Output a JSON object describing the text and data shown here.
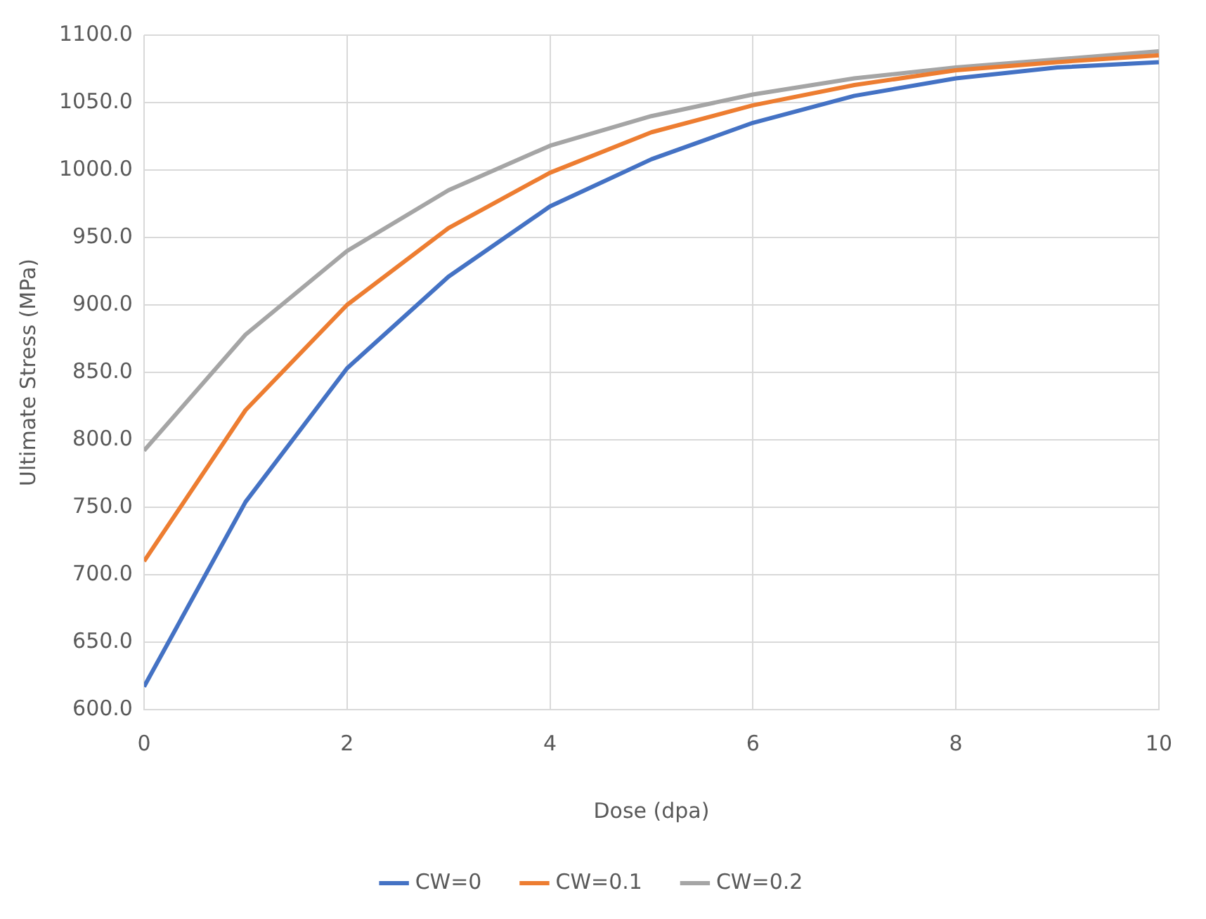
{
  "chart_data": {
    "type": "line",
    "xlabel": "Dose (dpa)",
    "ylabel": "Ultimate Stress (MPa)",
    "x": [
      0,
      1,
      2,
      3,
      4,
      5,
      6,
      7,
      8,
      9,
      10
    ],
    "series": [
      {
        "name": "CW=0",
        "color": "#4472c4",
        "values": [
          617,
          754,
          853,
          921,
          973,
          1008,
          1035,
          1055,
          1068,
          1076,
          1080
        ]
      },
      {
        "name": "CW=0.1",
        "color": "#ed7d31",
        "values": [
          710,
          822,
          900,
          957,
          998,
          1028,
          1048,
          1063,
          1074,
          1080,
          1085
        ]
      },
      {
        "name": "CW=0.2",
        "color": "#a5a5a5",
        "values": [
          792,
          878,
          940,
          985,
          1018,
          1040,
          1056,
          1068,
          1076,
          1082,
          1088
        ]
      }
    ],
    "xlim": [
      0,
      10
    ],
    "xticks": [
      0,
      2,
      4,
      6,
      8,
      10
    ],
    "ylim": [
      600,
      1100
    ],
    "yticks": [
      {
        "value": 600,
        "label": "600.0"
      },
      {
        "value": 650,
        "label": "650.0"
      },
      {
        "value": 700,
        "label": "700.0"
      },
      {
        "value": 750,
        "label": "750.0"
      },
      {
        "value": 800,
        "label": "800.0"
      },
      {
        "value": 850,
        "label": "850.0"
      },
      {
        "value": 900,
        "label": "900.0"
      },
      {
        "value": 950,
        "label": "950.0"
      },
      {
        "value": 1000,
        "label": "1000.0"
      },
      {
        "value": 1050,
        "label": "1050.0"
      },
      {
        "value": 1100,
        "label": "1100.0"
      }
    ],
    "grid": true,
    "legend": "bottom",
    "marker": "none",
    "line_style": "solid"
  }
}
